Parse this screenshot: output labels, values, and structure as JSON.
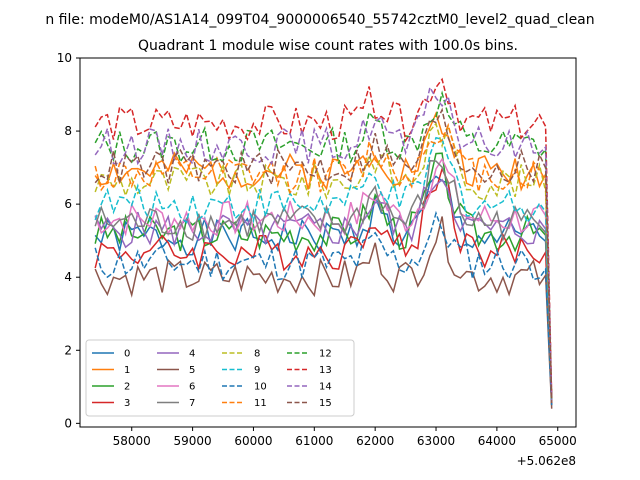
{
  "figure": {
    "suptitle": "n file: modeM0/AS1A14_099T04_9000006540_55742cztM0_level2_quad_clean"
  },
  "chart_data": {
    "type": "line",
    "title": "Quadrant 1 module wise count rates with 100.0s bins.",
    "xlabel": "",
    "ylabel": "",
    "x_offset_label": "+5.062e8",
    "xlim": [
      57150,
      65300
    ],
    "ylim": [
      -0.1,
      10
    ],
    "x_ticks": [
      58000,
      59000,
      60000,
      61000,
      62000,
      63000,
      64000,
      65000
    ],
    "y_ticks": [
      0,
      2,
      4,
      6,
      8,
      10
    ],
    "x_start": 57400,
    "x_step": 100,
    "legend_position": "lower-left",
    "legend_columns": 4,
    "series": [
      {
        "name": "0",
        "color": "#1f77b4",
        "dash": "solid",
        "base": 5.1,
        "peak": 1.5,
        "end": 0.6,
        "seed": 1
      },
      {
        "name": "1",
        "color": "#ff7f0e",
        "dash": "solid",
        "base": 6.9,
        "peak": 1.3,
        "end": 0.5,
        "seed": 2
      },
      {
        "name": "2",
        "color": "#2ca02c",
        "dash": "solid",
        "base": 5.2,
        "peak": 1.8,
        "end": 0.5,
        "seed": 3
      },
      {
        "name": "3",
        "color": "#d62728",
        "dash": "solid",
        "base": 4.7,
        "peak": 2.2,
        "end": 0.5,
        "seed": 4
      },
      {
        "name": "4",
        "color": "#9467bd",
        "dash": "solid",
        "base": 5.3,
        "peak": 1.6,
        "end": 0.6,
        "seed": 5
      },
      {
        "name": "5",
        "color": "#8c564b",
        "dash": "solid",
        "base": 4.0,
        "peak": 1.2,
        "end": 0.4,
        "seed": 6
      },
      {
        "name": "6",
        "color": "#e377c2",
        "dash": "solid",
        "base": 5.6,
        "peak": 1.5,
        "end": 0.6,
        "seed": 7
      },
      {
        "name": "7",
        "color": "#7f7f7f",
        "dash": "solid",
        "base": 5.5,
        "peak": 1.7,
        "end": 0.6,
        "seed": 8
      },
      {
        "name": "8",
        "color": "#bcbd22",
        "dash": "dashed",
        "base": 6.6,
        "peak": 1.5,
        "end": 0.6,
        "seed": 9
      },
      {
        "name": "9",
        "color": "#17becf",
        "dash": "dashed",
        "base": 6.0,
        "peak": 1.6,
        "end": 0.6,
        "seed": 10
      },
      {
        "name": "10",
        "color": "#1f77b4",
        "dash": "dashed",
        "base": 4.4,
        "peak": 1.0,
        "end": 0.5,
        "seed": 11
      },
      {
        "name": "11",
        "color": "#ff7f0e",
        "dash": "dashed",
        "base": 6.8,
        "peak": 1.4,
        "end": 0.6,
        "seed": 12
      },
      {
        "name": "12",
        "color": "#2ca02c",
        "dash": "dashed",
        "base": 7.6,
        "peak": 1.2,
        "end": 0.6,
        "seed": 13
      },
      {
        "name": "13",
        "color": "#d62728",
        "dash": "dashed",
        "base": 8.2,
        "peak": 1.3,
        "end": 0.7,
        "seed": 14
      },
      {
        "name": "14",
        "color": "#9467bd",
        "dash": "dashed",
        "base": 7.6,
        "peak": 1.5,
        "end": 0.6,
        "seed": 15
      },
      {
        "name": "15",
        "color": "#8c564b",
        "dash": "dashed",
        "base": 7.0,
        "peak": 1.3,
        "end": 0.6,
        "seed": 16
      }
    ]
  }
}
